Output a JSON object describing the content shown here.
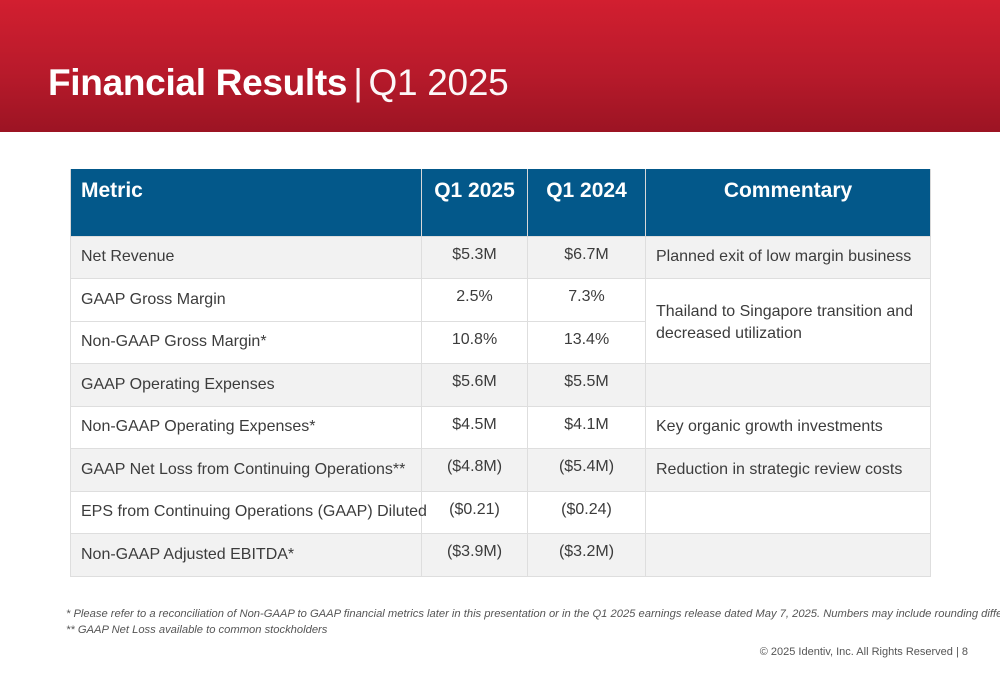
{
  "header": {
    "title_bold": "Financial Results",
    "separator": "|",
    "title_period": "Q1 2025",
    "band_color": "#c41e2f"
  },
  "table": {
    "header_color": "#03588a",
    "columns": {
      "metric": "Metric",
      "q1_2025": "Q1 2025",
      "q1_2024": "Q1 2024",
      "commentary": "Commentary"
    },
    "rows": [
      {
        "metric": "Net Revenue",
        "q1_2025": "$5.3M",
        "q1_2024": "$6.7M",
        "commentary": "Planned exit of low margin business"
      },
      {
        "metric": "GAAP Gross Margin",
        "q1_2025": "2.5%",
        "q1_2024": "7.3%",
        "commentary": "Thailand to Singapore transition and decreased utilization"
      },
      {
        "metric": "Non-GAAP Gross Margin*",
        "q1_2025": "10.8%",
        "q1_2024": "13.4%",
        "commentary": ""
      },
      {
        "metric": "GAAP Operating Expenses",
        "q1_2025": "$5.6M",
        "q1_2024": "$5.5M",
        "commentary": ""
      },
      {
        "metric": "Non-GAAP Operating Expenses*",
        "q1_2025": "$4.5M",
        "q1_2024": "$4.1M",
        "commentary": "Key organic growth investments"
      },
      {
        "metric": "GAAP Net Loss from Continuing Operations**",
        "q1_2025": "($4.8M)",
        "q1_2024": "($5.4M)",
        "commentary": "Reduction in strategic review costs"
      },
      {
        "metric": "EPS from Continuing Operations (GAAP) Diluted",
        "q1_2025": "($0.21)",
        "q1_2024": "($0.24)",
        "commentary": ""
      },
      {
        "metric": "Non-GAAP Adjusted EBITDA*",
        "q1_2025": "($3.9M)",
        "q1_2024": "($3.2M)",
        "commentary": ""
      }
    ]
  },
  "footnotes": {
    "line1": "* Please refer to a reconciliation of Non-GAAP to GAAP financial metrics later in this presentation or in the Q1 2025 earnings release dated May 7, 2025. Numbers may include rounding differences.",
    "line2": "** GAAP Net Loss available to common stockholders"
  },
  "footer": {
    "copyright": "© 2025 Identiv, Inc. All Rights Reserved | 8"
  }
}
